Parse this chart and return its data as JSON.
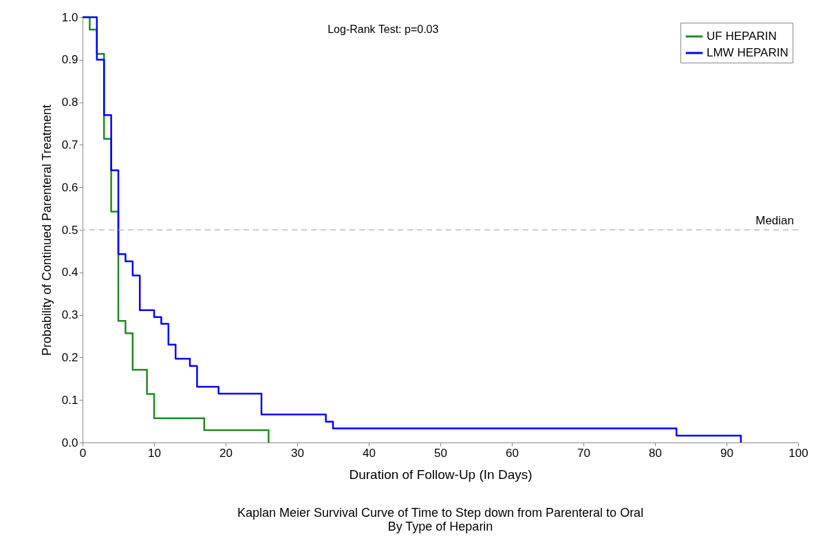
{
  "chart_data": {
    "type": "step",
    "title": "Kaplan Meier Survival Curve of Time to Step down from Parenteral to Oral",
    "subtitle": "By Type of Heparin",
    "xlabel": "Duration of Follow-Up (In Days)",
    "ylabel": "Probability of Continued Parenteral Treatment",
    "annotations": [
      "Log-Rank Test:   p=0.03"
    ],
    "series": [
      {
        "name": "UF HEPARIN",
        "color": "#1f8a1f",
        "x": [
          0,
          1,
          2,
          3,
          4,
          5,
          6,
          7,
          9,
          10,
          17,
          26
        ],
        "values": [
          1.0,
          0.971,
          0.914,
          0.714,
          0.543,
          0.286,
          0.257,
          0.171,
          0.114,
          0.057,
          0.029,
          0.0
        ]
      },
      {
        "name": "LMW HEPARIN",
        "color": "#0000ff",
        "x": [
          0,
          2,
          3,
          4,
          5,
          6,
          7,
          8,
          10,
          11,
          12,
          13,
          15,
          16,
          19,
          25,
          34,
          35,
          83,
          92
        ],
        "values": [
          1.0,
          0.9,
          0.77,
          0.64,
          0.443,
          0.426,
          0.393,
          0.311,
          0.295,
          0.279,
          0.23,
          0.197,
          0.18,
          0.131,
          0.115,
          0.066,
          0.049,
          0.033,
          0.016,
          0.0
        ]
      }
    ],
    "xlim": [
      0,
      100
    ],
    "xticks": [
      0,
      10,
      20,
      30,
      40,
      50,
      60,
      70,
      80,
      90,
      100
    ],
    "ylim": [
      0,
      1
    ],
    "yticks": [
      {
        "value": 0,
        "label": "0.0"
      },
      0.1,
      0.2,
      0.3,
      0.4,
      0.5,
      0.6,
      0.7,
      0.8,
      0.9,
      {
        "value": 1,
        "label": "1.0"
      }
    ],
    "ref_lines": [
      {
        "axis": "y",
        "value": 0.5,
        "label": "Median",
        "color": "#bbbbbb",
        "line_style": "dashed"
      }
    ],
    "legend": "top right",
    "grid": false,
    "marker": "none",
    "line_style": "solid"
  }
}
